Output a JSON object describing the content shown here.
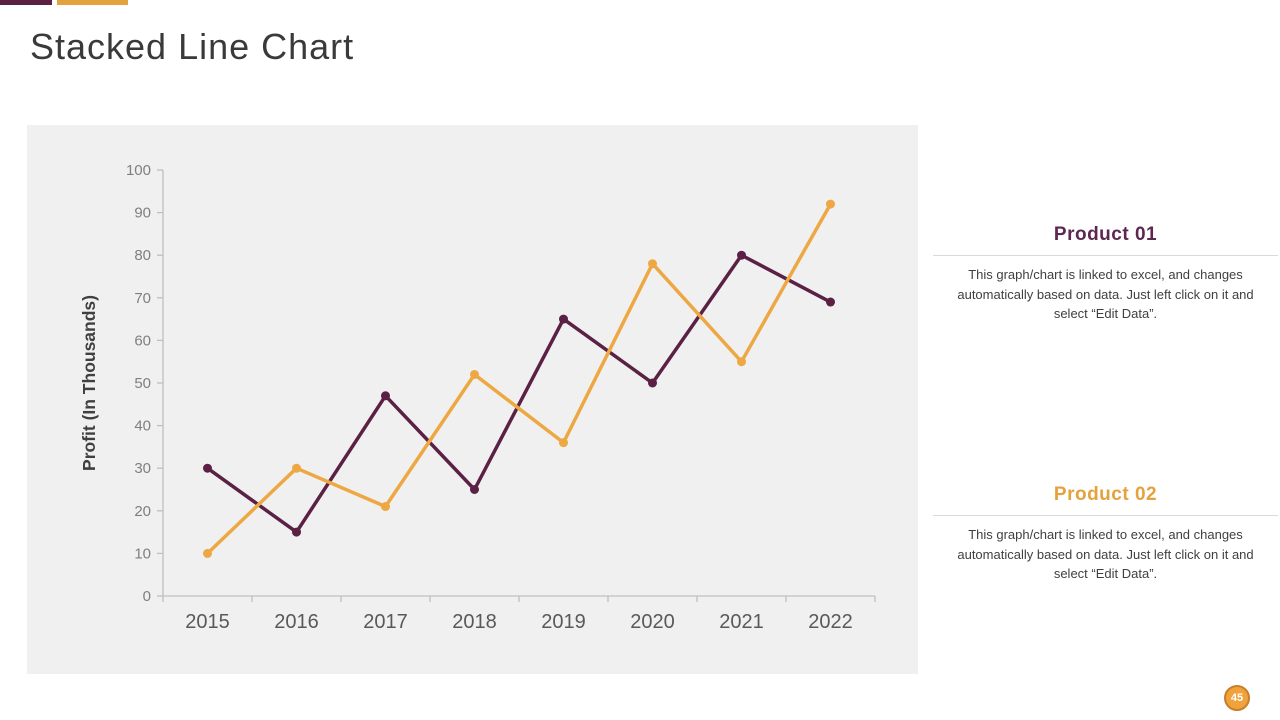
{
  "slide": {
    "title": "Stacked Line Chart",
    "top_bar_colors": [
      "#5b2144",
      "#e2a33e"
    ]
  },
  "chart_data": {
    "type": "line",
    "categories": [
      "2015",
      "2016",
      "2017",
      "2018",
      "2019",
      "2020",
      "2021",
      "2022"
    ],
    "series": [
      {
        "name": "Product 01",
        "color": "#5b2144",
        "values": [
          30,
          15,
          47,
          25,
          65,
          50,
          80,
          69
        ]
      },
      {
        "name": "Product 02",
        "color": "#eda843",
        "values": [
          10,
          30,
          21,
          52,
          36,
          78,
          55,
          92
        ]
      }
    ],
    "title": "",
    "xlabel": "",
    "ylabel": "Profit (In Thousands)",
    "ylim": [
      0,
      100
    ],
    "ytick_step": 10,
    "yticks": [
      0,
      10,
      20,
      30,
      40,
      50,
      60,
      70,
      80,
      90,
      100
    ],
    "grid": false,
    "legend": "none",
    "plot_background": "#f0f0f0",
    "axis_color": "#bfbfbf",
    "ytick_label_color": "#7f7f7f",
    "xtick_label_color": "#595959",
    "ylabel_color": "#404040"
  },
  "panels": [
    {
      "heading": "Product 01",
      "accent_color": "#5e2750",
      "body": "This graph/chart is linked to excel, and changes automatically based on data. Just left click on it and select “Edit Data”."
    },
    {
      "heading": "Product 02",
      "accent_color": "#e5a23c",
      "body": "This graph/chart is linked to excel, and changes automatically based on data. Just left click on it and select “Edit Data”."
    }
  ],
  "badge": {
    "text": "45",
    "fill": "#f0a23c",
    "border": "#c87e2a",
    "text_color": "#ffffff"
  }
}
